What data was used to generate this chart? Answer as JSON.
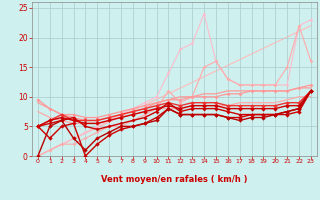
{
  "title": "",
  "xlabel": "Vent moyen/en rafales ( km/h )",
  "ylabel": "",
  "xlim": [
    -0.5,
    23.5
  ],
  "ylim": [
    0,
    26
  ],
  "xticks": [
    0,
    1,
    2,
    3,
    4,
    5,
    6,
    7,
    8,
    9,
    10,
    11,
    12,
    13,
    14,
    15,
    16,
    17,
    18,
    19,
    20,
    21,
    22,
    23
  ],
  "yticks": [
    0,
    5,
    10,
    15,
    20,
    25
  ],
  "bg_color": "#cef0ee",
  "grid_color": "#aacccc",
  "lines": [
    {
      "x": [
        0,
        23
      ],
      "y": [
        0,
        22
      ],
      "color": "#ffbbbb",
      "lw": 0.8,
      "marker": "None",
      "ms": 0,
      "alpha": 1.0,
      "zorder": 1
    },
    {
      "x": [
        0,
        1,
        2,
        3,
        4,
        5,
        6,
        7,
        8,
        9,
        10,
        11,
        12,
        13,
        14,
        15,
        16,
        17,
        18,
        19,
        20,
        21,
        22,
        23
      ],
      "y": [
        0,
        1,
        2,
        3,
        4,
        5,
        6,
        7,
        8,
        9,
        10,
        14,
        18,
        19,
        24,
        16,
        13,
        12,
        12,
        12,
        12,
        12,
        22,
        23
      ],
      "color": "#ffbbcc",
      "lw": 0.8,
      "marker": "D",
      "ms": 1.8,
      "alpha": 1.0,
      "zorder": 2
    },
    {
      "x": [
        0,
        1,
        2,
        3,
        4,
        5,
        6,
        7,
        8,
        9,
        10,
        11,
        12,
        13,
        14,
        15,
        16,
        17,
        18,
        19,
        20,
        21,
        22,
        23
      ],
      "y": [
        0,
        1,
        2,
        2,
        3,
        4,
        5,
        5,
        6,
        7,
        8,
        11,
        9,
        10,
        15,
        16,
        13,
        12,
        12,
        12,
        12,
        15,
        22,
        16
      ],
      "color": "#ffaaaa",
      "lw": 0.8,
      "marker": "D",
      "ms": 1.8,
      "alpha": 1.0,
      "zorder": 2
    },
    {
      "x": [
        0,
        1,
        2,
        3,
        4,
        5,
        6,
        7,
        8,
        9,
        10,
        11,
        12,
        13,
        14,
        15,
        16,
        17,
        18,
        19,
        20,
        21,
        22,
        23
      ],
      "y": [
        9,
        8,
        7,
        6.5,
        6,
        6,
        6.5,
        7,
        7.5,
        8,
        9,
        9.5,
        10,
        10,
        10.5,
        10.5,
        11,
        11,
        11,
        11,
        11,
        11,
        11.5,
        11.5
      ],
      "color": "#ff9999",
      "lw": 0.9,
      "marker": "None",
      "ms": 0,
      "alpha": 1.0,
      "zorder": 3
    },
    {
      "x": [
        0,
        1,
        2,
        3,
        4,
        5,
        6,
        7,
        8,
        9,
        10,
        11,
        12,
        13,
        14,
        15,
        16,
        17,
        18,
        19,
        20,
        21,
        22,
        23
      ],
      "y": [
        7.5,
        6.5,
        6,
        5.5,
        5.5,
        5.5,
        6,
        6.5,
        7,
        7.5,
        8,
        8,
        8,
        8.5,
        8.5,
        8.5,
        8.5,
        9,
        9,
        9,
        9,
        9.5,
        10,
        10
      ],
      "color": "#ffaaaa",
      "lw": 0.9,
      "marker": "None",
      "ms": 0,
      "alpha": 1.0,
      "zorder": 3
    },
    {
      "x": [
        0,
        1,
        2,
        3,
        4,
        5,
        6,
        7,
        8,
        9,
        10,
        11,
        12,
        13,
        14,
        15,
        16,
        17,
        18,
        19,
        20,
        21,
        22,
        23
      ],
      "y": [
        9.5,
        8,
        7,
        7,
        6.5,
        6.5,
        7,
        7.5,
        8,
        8.5,
        9,
        9.5,
        9.5,
        10,
        10,
        10,
        10.5,
        10.5,
        11,
        11,
        11,
        11,
        11.5,
        12
      ],
      "color": "#ff9999",
      "lw": 0.9,
      "marker": "D",
      "ms": 2.0,
      "alpha": 1.0,
      "zorder": 3
    },
    {
      "x": [
        0,
        1,
        2,
        3,
        4,
        5,
        6,
        7,
        8,
        9,
        10,
        11,
        12,
        13,
        14,
        15,
        16,
        17,
        18,
        19,
        20,
        21,
        22,
        23
      ],
      "y": [
        5,
        6,
        7,
        6,
        6,
        6,
        6.5,
        7,
        7.5,
        8,
        8.5,
        9,
        8.5,
        9,
        9,
        9,
        8.5,
        8.5,
        8.5,
        8.5,
        8.5,
        9,
        9,
        11
      ],
      "color": "#ee3333",
      "lw": 1.0,
      "marker": "D",
      "ms": 2.2,
      "alpha": 1.0,
      "zorder": 4
    },
    {
      "x": [
        0,
        1,
        2,
        3,
        4,
        5,
        6,
        7,
        8,
        9,
        10,
        11,
        12,
        13,
        14,
        15,
        16,
        17,
        18,
        19,
        20,
        21,
        22,
        23
      ],
      "y": [
        5,
        6,
        6.5,
        6,
        5.5,
        5.5,
        6,
        6.5,
        7,
        7.5,
        8,
        8.5,
        8,
        8.5,
        8.5,
        8.5,
        8,
        8,
        8,
        8,
        8,
        8.5,
        8.5,
        11
      ],
      "color": "#cc0000",
      "lw": 1.0,
      "marker": "D",
      "ms": 2.2,
      "alpha": 1.0,
      "zorder": 4
    },
    {
      "x": [
        0,
        1,
        2,
        3,
        4,
        5,
        6,
        7,
        8,
        9,
        10,
        11,
        12,
        13,
        14,
        15,
        16,
        17,
        18,
        19,
        20,
        21,
        22,
        23
      ],
      "y": [
        5,
        5.5,
        6,
        6.5,
        5,
        4.5,
        5,
        5.5,
        6,
        6.5,
        7.5,
        9,
        7.5,
        8,
        8,
        8,
        7.5,
        7,
        7,
        7,
        7,
        7.5,
        8,
        11
      ],
      "color": "#cc0000",
      "lw": 1.0,
      "marker": "D",
      "ms": 2.0,
      "alpha": 1.0,
      "zorder": 4
    },
    {
      "x": [
        0,
        1,
        2,
        3,
        4,
        5,
        6,
        7,
        8,
        9,
        10,
        11,
        12,
        13,
        14,
        15,
        16,
        17,
        18,
        19,
        20,
        21,
        22,
        23
      ],
      "y": [
        5,
        3,
        5,
        5.5,
        0,
        2,
        3.5,
        4.5,
        5,
        5.5,
        6.5,
        8,
        7,
        7,
        7,
        7,
        6.5,
        6.5,
        7,
        7,
        7,
        7,
        7.5,
        11
      ],
      "color": "#cc0000",
      "lw": 1.0,
      "marker": "D",
      "ms": 2.2,
      "alpha": 1.0,
      "zorder": 5
    },
    {
      "x": [
        0,
        1,
        2,
        3,
        4,
        5,
        6,
        7,
        8,
        9,
        10,
        11,
        12,
        13,
        14,
        15,
        16,
        17,
        18,
        19,
        20,
        21,
        22,
        23
      ],
      "y": [
        0,
        5,
        6,
        3,
        1,
        3,
        4,
        5,
        5,
        5.5,
        6,
        8,
        7,
        7,
        7,
        7,
        6.5,
        6,
        6.5,
        6.5,
        7,
        7.5,
        8,
        11
      ],
      "color": "#bb0000",
      "lw": 1.0,
      "marker": "D",
      "ms": 2.2,
      "alpha": 1.0,
      "zorder": 5
    }
  ]
}
